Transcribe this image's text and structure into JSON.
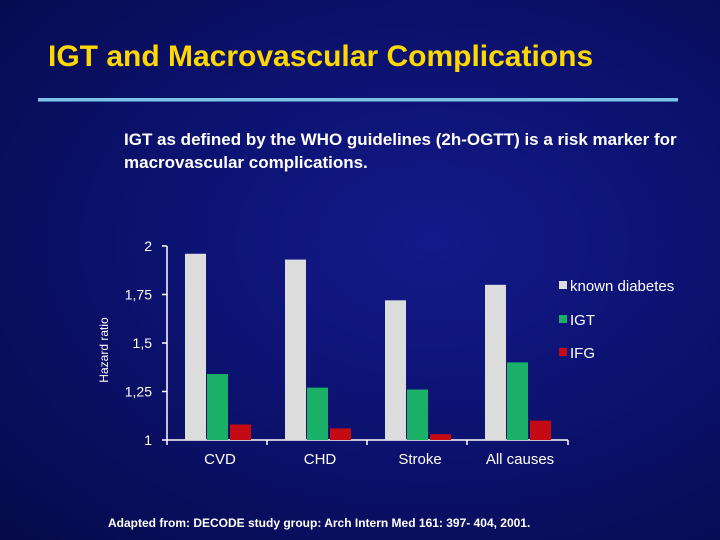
{
  "slide": {
    "title": "IGT and Macrovascular Complications",
    "subtitle": "IGT as defined by the WHO guidelines (2h-OGTT) is a risk marker for macrovascular complications.",
    "source": "Adapted from: DECODE study group: Arch Intern Med 161: 397- 404, 2001."
  },
  "chart_data": {
    "type": "bar",
    "ylabel": "Hazard ratio",
    "ylim": [
      1,
      2
    ],
    "yticks": [
      1,
      1.25,
      1.5,
      1.75,
      2
    ],
    "ytick_labels": [
      "1",
      "1,25",
      "1,5",
      "1,75",
      "2"
    ],
    "categories": [
      "CVD",
      "CHD",
      "Stroke",
      "All causes"
    ],
    "series": [
      {
        "name": "known diabetes",
        "color": "#dcdcdc",
        "values": [
          1.96,
          1.93,
          1.72,
          1.8
        ]
      },
      {
        "name": "IGT",
        "color": "#1ab068",
        "values": [
          1.34,
          1.27,
          1.26,
          1.4
        ]
      },
      {
        "name": "IFG",
        "color": "#c40a12",
        "values": [
          1.08,
          1.06,
          1.03,
          1.1
        ]
      }
    ],
    "legend_position": "right",
    "grid": false
  }
}
